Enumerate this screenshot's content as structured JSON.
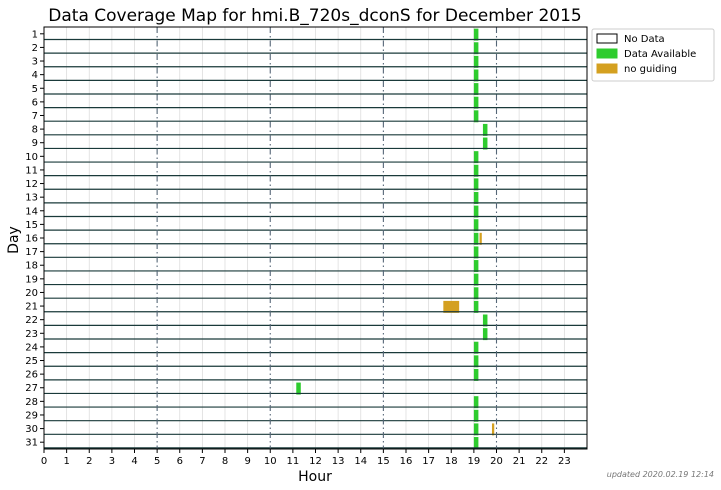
{
  "chart_data": {
    "type": "heatmap",
    "title": "Data Coverage Map for hmi.B_720s_dconS for December 2015",
    "xlabel": "Hour",
    "ylabel": "Day",
    "xlim": [
      0,
      24
    ],
    "ylim": [
      1,
      31
    ],
    "x_ticks": [
      "0",
      "1",
      "2",
      "3",
      "4",
      "5",
      "6",
      "7",
      "8",
      "9",
      "10",
      "11",
      "12",
      "13",
      "14",
      "15",
      "16",
      "17",
      "18",
      "19",
      "20",
      "21",
      "22",
      "23"
    ],
    "y_ticks": [
      "1",
      "2",
      "3",
      "4",
      "5",
      "6",
      "7",
      "8",
      "9",
      "10",
      "11",
      "12",
      "13",
      "14",
      "15",
      "16",
      "17",
      "18",
      "19",
      "20",
      "21",
      "22",
      "23",
      "24",
      "25",
      "26",
      "27",
      "28",
      "29",
      "30",
      "31"
    ],
    "major_hour_lines": [
      5,
      10,
      15,
      20
    ],
    "legend": {
      "placement": "upper-right-outside",
      "entries": [
        {
          "label": "No Data",
          "color": "#ffffff"
        },
        {
          "label": "Data Available",
          "color": "#2ecc2e"
        },
        {
          "label": "no guiding",
          "color": "#d4a020"
        }
      ]
    },
    "colors": {
      "data": "#2ecc2e",
      "no_guiding": "#d4a020",
      "row_line": "#1a3a3a"
    },
    "segments": [
      {
        "day": 1,
        "start": 19.0,
        "end": 19.2,
        "status": "data"
      },
      {
        "day": 2,
        "start": 19.0,
        "end": 19.2,
        "status": "data"
      },
      {
        "day": 3,
        "start": 19.0,
        "end": 19.2,
        "status": "data"
      },
      {
        "day": 4,
        "start": 19.0,
        "end": 19.2,
        "status": "data"
      },
      {
        "day": 5,
        "start": 19.0,
        "end": 19.2,
        "status": "data"
      },
      {
        "day": 6,
        "start": 19.0,
        "end": 19.2,
        "status": "data"
      },
      {
        "day": 7,
        "start": 19.0,
        "end": 19.2,
        "status": "data"
      },
      {
        "day": 8,
        "start": 19.4,
        "end": 19.6,
        "status": "data"
      },
      {
        "day": 9,
        "start": 19.4,
        "end": 19.6,
        "status": "data"
      },
      {
        "day": 10,
        "start": 19.0,
        "end": 19.2,
        "status": "data"
      },
      {
        "day": 11,
        "start": 19.0,
        "end": 19.2,
        "status": "data"
      },
      {
        "day": 12,
        "start": 19.0,
        "end": 19.2,
        "status": "data"
      },
      {
        "day": 13,
        "start": 19.0,
        "end": 19.2,
        "status": "data"
      },
      {
        "day": 14,
        "start": 19.0,
        "end": 19.2,
        "status": "data"
      },
      {
        "day": 15,
        "start": 19.0,
        "end": 19.2,
        "status": "data"
      },
      {
        "day": 16,
        "start": 19.0,
        "end": 19.2,
        "status": "data"
      },
      {
        "day": 16,
        "start": 19.25,
        "end": 19.35,
        "status": "no_guiding"
      },
      {
        "day": 17,
        "start": 19.0,
        "end": 19.2,
        "status": "data"
      },
      {
        "day": 18,
        "start": 19.0,
        "end": 19.2,
        "status": "data"
      },
      {
        "day": 19,
        "start": 19.0,
        "end": 19.2,
        "status": "data"
      },
      {
        "day": 20,
        "start": 19.0,
        "end": 19.2,
        "status": "data"
      },
      {
        "day": 21,
        "start": 17.65,
        "end": 18.35,
        "status": "no_guiding"
      },
      {
        "day": 21,
        "start": 19.0,
        "end": 19.2,
        "status": "data"
      },
      {
        "day": 22,
        "start": 19.4,
        "end": 19.6,
        "status": "data"
      },
      {
        "day": 23,
        "start": 19.4,
        "end": 19.6,
        "status": "data"
      },
      {
        "day": 24,
        "start": 19.0,
        "end": 19.2,
        "status": "data"
      },
      {
        "day": 25,
        "start": 19.0,
        "end": 19.2,
        "status": "data"
      },
      {
        "day": 26,
        "start": 19.0,
        "end": 19.2,
        "status": "data"
      },
      {
        "day": 27,
        "start": 11.15,
        "end": 11.35,
        "status": "data"
      },
      {
        "day": 28,
        "start": 19.0,
        "end": 19.2,
        "status": "data"
      },
      {
        "day": 29,
        "start": 19.0,
        "end": 19.2,
        "status": "data"
      },
      {
        "day": 30,
        "start": 19.0,
        "end": 19.2,
        "status": "data"
      },
      {
        "day": 30,
        "start": 19.8,
        "end": 19.9,
        "status": "no_guiding"
      },
      {
        "day": 31,
        "start": 19.0,
        "end": 19.2,
        "status": "data"
      }
    ]
  },
  "footer": {
    "updated": "updated 2020.02.19 12:14"
  }
}
